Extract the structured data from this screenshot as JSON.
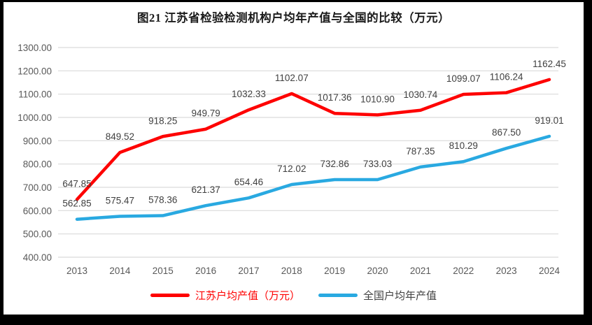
{
  "title": "图21  江苏省检验检测机构户均年产值与全国的比较（万元）",
  "chart_data": {
    "type": "line",
    "title": "图21  江苏省检验检测机构户均年产值与全国的比较（万元）",
    "x": [
      "2013",
      "2014",
      "2015",
      "2016",
      "2017",
      "2018",
      "2019",
      "2020",
      "2021",
      "2022",
      "2023",
      "2024"
    ],
    "series": [
      {
        "name": "江苏户均产值（万元）",
        "color": "#fe0000",
        "legend_text_color": "#fe0000",
        "values": [
          647.85,
          849.52,
          918.25,
          949.79,
          1032.33,
          1102.07,
          1017.36,
          1010.9,
          1030.74,
          1099.07,
          1106.24,
          1162.45
        ]
      },
      {
        "name": "全国户均年产值",
        "color": "#29a9e1",
        "legend_text_color": "#404040",
        "values": [
          562.85,
          575.47,
          578.36,
          621.37,
          654.46,
          712.02,
          732.86,
          733.03,
          787.35,
          810.29,
          867.5,
          919.01
        ]
      }
    ],
    "ylim": [
      400,
      1300
    ],
    "ytick_step": 100,
    "ytick_decimals": 2,
    "data_labels": true,
    "data_label_decimals": 2,
    "grid": true,
    "legend_position": "bottom",
    "xlabel": "",
    "ylabel": "",
    "colors": {
      "grid": "#d9d9d9",
      "axis_text": "#595959",
      "data_label_text": "#404040",
      "frame": "#000000",
      "background": "#ffffff"
    }
  }
}
